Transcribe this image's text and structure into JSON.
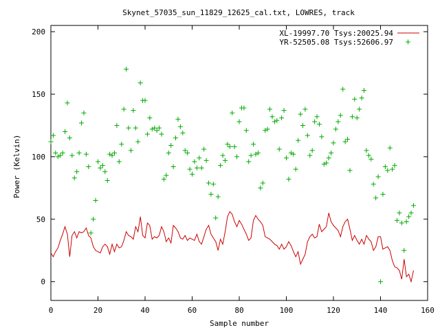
{
  "chart_data": {
    "type": "line",
    "title": "Skynet_57035_sun_11829_12625_cal.txt, LOWRES, track",
    "xlabel": "Sample number",
    "ylabel": "Power (Kelvin)",
    "xlim": [
      0,
      160
    ],
    "ylim": [
      -15,
      205
    ],
    "xticks": [
      0,
      20,
      40,
      60,
      80,
      100,
      120,
      140,
      160
    ],
    "yticks": [
      0,
      50,
      100,
      150,
      200
    ],
    "xtick_labels": [
      "0",
      "20",
      "40",
      "60",
      "80",
      "100",
      "120",
      "140",
      "160"
    ],
    "ytick_labels": [
      "0",
      "50",
      "100",
      "150",
      "200"
    ],
    "grid": false,
    "legend_position": "top-right",
    "series": [
      {
        "name": "XL-19997.70 Tsys:20025.94",
        "style": "line",
        "color": "#cc0000",
        "x": [
          0,
          1,
          2,
          3,
          4,
          5,
          6,
          7,
          8,
          9,
          10,
          11,
          12,
          13,
          14,
          15,
          16,
          17,
          18,
          19,
          20,
          21,
          22,
          23,
          24,
          25,
          26,
          27,
          28,
          29,
          30,
          31,
          32,
          33,
          34,
          35,
          36,
          37,
          38,
          39,
          40,
          41,
          42,
          43,
          44,
          45,
          46,
          47,
          48,
          49,
          50,
          51,
          52,
          53,
          54,
          55,
          56,
          57,
          58,
          59,
          60,
          61,
          62,
          63,
          64,
          65,
          66,
          67,
          68,
          69,
          70,
          71,
          72,
          73,
          74,
          75,
          76,
          77,
          78,
          79,
          80,
          81,
          82,
          83,
          84,
          85,
          86,
          87,
          88,
          89,
          90,
          91,
          92,
          93,
          94,
          95,
          96,
          97,
          98,
          99,
          100,
          101,
          102,
          103,
          104,
          105,
          106,
          107,
          108,
          109,
          110,
          111,
          112,
          113,
          114,
          115,
          116,
          117,
          118,
          119,
          120,
          121,
          122,
          123,
          124,
          125,
          126,
          127,
          128,
          129,
          130,
          131,
          132,
          133,
          134,
          135,
          136,
          137,
          138,
          139,
          140,
          141,
          142,
          143,
          144,
          145,
          146,
          147,
          148,
          149,
          150,
          151,
          152,
          153,
          154
        ],
        "y": [
          23,
          20,
          24,
          27,
          33,
          38,
          44,
          38,
          20,
          37,
          40,
          35,
          40,
          39,
          40,
          43,
          37,
          35,
          28,
          25,
          24,
          23,
          28,
          30,
          28,
          22,
          30,
          24,
          30,
          27,
          28,
          33,
          40,
          37,
          36,
          34,
          44,
          40,
          52,
          37,
          35,
          47,
          45,
          34,
          36,
          35,
          37,
          44,
          40,
          32,
          35,
          31,
          45,
          43,
          40,
          35,
          34,
          37,
          33,
          35,
          34,
          33,
          38,
          32,
          30,
          36,
          42,
          45,
          38,
          35,
          32,
          25,
          34,
          30,
          40,
          52,
          56,
          54,
          48,
          44,
          49,
          46,
          42,
          38,
          33,
          35,
          49,
          53,
          50,
          48,
          45,
          36,
          35,
          34,
          32,
          30,
          29,
          26,
          30,
          26,
          28,
          32,
          29,
          24,
          20,
          24,
          14,
          18,
          22,
          32,
          36,
          38,
          35,
          36,
          46,
          40,
          42,
          44,
          55,
          48,
          45,
          43,
          41,
          36,
          44,
          48,
          50,
          42,
          33,
          37,
          33,
          30,
          34,
          30,
          37,
          34,
          32,
          25,
          28,
          36,
          36,
          26,
          27,
          28,
          25,
          17,
          12,
          11,
          9,
          2,
          18,
          4,
          6,
          0,
          9
        ]
      },
      {
        "name": "YR-52505.08 Tsys:52606.97",
        "style": "points",
        "marker": "+",
        "color": "#00aa00",
        "x": [
          0,
          1,
          2,
          3,
          4,
          5,
          6,
          7,
          8,
          9,
          10,
          11,
          12,
          13,
          14,
          15,
          16,
          17,
          18,
          19,
          20,
          21,
          22,
          23,
          24,
          25,
          26,
          27,
          28,
          29,
          30,
          31,
          32,
          33,
          34,
          35,
          36,
          37,
          38,
          39,
          40,
          41,
          42,
          43,
          44,
          45,
          46,
          47,
          48,
          49,
          50,
          51,
          52,
          53,
          54,
          55,
          56,
          57,
          58,
          59,
          60,
          61,
          62,
          63,
          64,
          65,
          66,
          67,
          68,
          69,
          70,
          71,
          72,
          73,
          74,
          75,
          76,
          77,
          78,
          79,
          80,
          81,
          82,
          83,
          84,
          85,
          86,
          87,
          88,
          89,
          90,
          91,
          92,
          93,
          94,
          95,
          96,
          97,
          98,
          99,
          100,
          101,
          102,
          103,
          104,
          105,
          106,
          107,
          108,
          109,
          110,
          111,
          112,
          113,
          114,
          115,
          116,
          117,
          118,
          119,
          120,
          121,
          122,
          123,
          124,
          125,
          126,
          127,
          128,
          129,
          130,
          131,
          132,
          133,
          134,
          135,
          136,
          137,
          138,
          139,
          140,
          141,
          142,
          143,
          144,
          145,
          146,
          147,
          148,
          149,
          150,
          151,
          152,
          153,
          154
        ],
        "y": [
          112,
          117,
          103,
          100,
          101,
          103,
          120,
          143,
          115,
          101,
          83,
          88,
          103,
          127,
          135,
          102,
          92,
          39,
          50,
          65,
          96,
          91,
          93,
          88,
          81,
          102,
          101,
          103,
          125,
          96,
          110,
          138,
          170,
          123,
          105,
          137,
          123,
          112,
          159,
          145,
          145,
          118,
          131,
          122,
          123,
          121,
          123,
          118,
          82,
          85,
          103,
          109,
          92,
          115,
          130,
          124,
          119,
          105,
          103,
          90,
          86,
          96,
          91,
          99,
          91,
          106,
          97,
          79,
          70,
          78,
          51,
          68,
          93,
          101,
          97,
          110,
          108,
          135,
          108,
          100,
          128,
          139,
          139,
          121,
          96,
          101,
          110,
          102,
          103,
          75,
          79,
          121,
          122,
          138,
          132,
          128,
          129,
          106,
          131,
          137,
          99,
          82,
          103,
          102,
          90,
          113,
          134,
          125,
          138,
          117,
          101,
          105,
          128,
          132,
          126,
          116,
          94,
          95,
          99,
          103,
          111,
          122,
          128,
          133,
          154,
          112,
          114,
          89,
          132,
          146,
          131,
          138,
          147,
          153,
          105,
          101,
          98,
          78,
          67,
          84,
          0,
          70,
          92,
          89,
          107,
          90,
          93,
          49,
          55,
          47,
          25,
          48,
          52,
          55,
          61
        ]
      }
    ]
  }
}
